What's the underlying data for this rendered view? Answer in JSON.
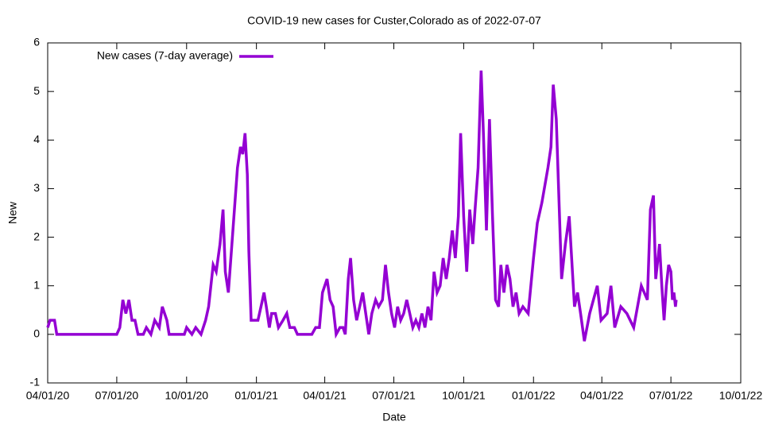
{
  "chart_data": {
    "type": "line",
    "title": "COVID-19 new cases for Custer,Colorado as of 2022-07-07",
    "x_label": "Date",
    "y_label": "New",
    "x": [
      "2020-04-01",
      "2020-04-04",
      "2020-04-10",
      "2020-04-13",
      "2020-07-01",
      "2020-07-05",
      "2020-07-09",
      "2020-07-13",
      "2020-07-17",
      "2020-07-21",
      "2020-07-25",
      "2020-07-29",
      "2020-08-05",
      "2020-08-09",
      "2020-08-15",
      "2020-08-20",
      "2020-08-26",
      "2020-08-30",
      "2020-09-05",
      "2020-09-08",
      "2020-09-28",
      "2020-10-01",
      "2020-10-08",
      "2020-10-13",
      "2020-10-20",
      "2020-10-26",
      "2020-10-30",
      "2020-11-05",
      "2020-11-09",
      "2020-11-14",
      "2020-11-18",
      "2020-11-21",
      "2020-11-25",
      "2020-11-29",
      "2020-12-03",
      "2020-12-07",
      "2020-12-11",
      "2020-12-14",
      "2020-12-17",
      "2020-12-20",
      "2020-12-22",
      "2020-12-25",
      "2021-01-03",
      "2021-01-07",
      "2021-01-11",
      "2021-01-14",
      "2021-01-18",
      "2021-01-21",
      "2021-01-26",
      "2021-01-30",
      "2021-02-05",
      "2021-02-10",
      "2021-02-14",
      "2021-02-20",
      "2021-02-24",
      "2021-03-15",
      "2021-03-20",
      "2021-03-25",
      "2021-03-29",
      "2021-04-04",
      "2021-04-08",
      "2021-04-12",
      "2021-04-16",
      "2021-04-21",
      "2021-04-25",
      "2021-04-28",
      "2021-05-02",
      "2021-05-05",
      "2021-05-09",
      "2021-05-13",
      "2021-05-17",
      "2021-05-21",
      "2021-05-25",
      "2021-05-29",
      "2021-06-02",
      "2021-06-07",
      "2021-06-11",
      "2021-06-16",
      "2021-06-20",
      "2021-06-24",
      "2021-06-28",
      "2021-07-02",
      "2021-07-06",
      "2021-07-10",
      "2021-07-14",
      "2021-07-18",
      "2021-07-22",
      "2021-07-26",
      "2021-07-30",
      "2021-08-03",
      "2021-08-07",
      "2021-08-11",
      "2021-08-15",
      "2021-08-19",
      "2021-08-23",
      "2021-08-27",
      "2021-08-31",
      "2021-09-04",
      "2021-09-08",
      "2021-09-12",
      "2021-09-16",
      "2021-09-20",
      "2021-09-24",
      "2021-09-27",
      "2021-10-01",
      "2021-10-05",
      "2021-10-09",
      "2021-10-13",
      "2021-10-16",
      "2021-10-20",
      "2021-10-24",
      "2021-10-27",
      "2021-10-31",
      "2021-11-04",
      "2021-11-08",
      "2021-11-12",
      "2021-11-16",
      "2021-11-19",
      "2021-11-23",
      "2021-11-27",
      "2021-12-01",
      "2021-12-05",
      "2021-12-09",
      "2021-12-13",
      "2021-12-18",
      "2021-12-25",
      "2022-01-01",
      "2022-01-06",
      "2022-01-12",
      "2022-01-20",
      "2022-01-24",
      "2022-01-27",
      "2022-01-31",
      "2022-02-07",
      "2022-02-12",
      "2022-02-17",
      "2022-02-24",
      "2022-02-28",
      "2022-03-04",
      "2022-03-09",
      "2022-03-16",
      "2022-03-26",
      "2022-03-31",
      "2022-04-08",
      "2022-04-13",
      "2022-04-18",
      "2022-04-26",
      "2022-05-04",
      "2022-05-13",
      "2022-05-18",
      "2022-05-23",
      "2022-05-31",
      "2022-06-04",
      "2022-06-08",
      "2022-06-11",
      "2022-06-16",
      "2022-06-19",
      "2022-06-22",
      "2022-06-25",
      "2022-06-28",
      "2022-07-01",
      "2022-07-03",
      "2022-07-05",
      "2022-07-07",
      "2022-07-08"
    ],
    "series": [
      {
        "name": "New cases (7-day average)",
        "color": "#9400d3",
        "values": [
          0.14,
          0.29,
          0.29,
          0,
          0,
          0.14,
          0.71,
          0.43,
          0.71,
          0.29,
          0.29,
          0,
          0,
          0.14,
          0,
          0.29,
          0.14,
          0.57,
          0.29,
          0,
          0,
          0.14,
          0,
          0.14,
          0,
          0.29,
          0.57,
          1.43,
          1.29,
          1.86,
          2.57,
          1.29,
          0.86,
          1.71,
          2.57,
          3.43,
          3.86,
          3.71,
          4.14,
          3.29,
          1.71,
          0.29,
          0.29,
          0.57,
          0.86,
          0.57,
          0.14,
          0.43,
          0.43,
          0.14,
          0.29,
          0.43,
          0.14,
          0.14,
          0,
          0,
          0.14,
          0.14,
          0.86,
          1.14,
          0.71,
          0.57,
          0,
          0.14,
          0.14,
          0,
          1.14,
          1.57,
          0.71,
          0.29,
          0.57,
          0.86,
          0.43,
          0,
          0.43,
          0.71,
          0.57,
          0.71,
          1.43,
          0.86,
          0.43,
          0.14,
          0.57,
          0.29,
          0.43,
          0.71,
          0.43,
          0.14,
          0.29,
          0.14,
          0.43,
          0.14,
          0.57,
          0.29,
          1.29,
          0.86,
          1,
          1.57,
          1.14,
          1.57,
          2.14,
          1.57,
          2.43,
          4.14,
          2.43,
          1.29,
          2.57,
          1.86,
          2.57,
          3.43,
          5.43,
          4.14,
          2.14,
          4.43,
          2.43,
          0.71,
          0.57,
          1.43,
          0.86,
          1.43,
          1.14,
          0.57,
          0.86,
          0.43,
          0.57,
          0.43,
          1.57,
          2.29,
          2.71,
          3.43,
          3.86,
          5.14,
          4.43,
          1.14,
          1.86,
          2.43,
          0.57,
          0.86,
          0.43,
          -0.14,
          0.43,
          1,
          0.29,
          0.43,
          1,
          0.14,
          0.57,
          0.43,
          0.14,
          0.57,
          1,
          0.71,
          2.57,
          2.86,
          1.14,
          1.86,
          1,
          0.29,
          1,
          1.43,
          1.29,
          0.71,
          0.86,
          0.57,
          0.71
        ]
      }
    ],
    "xlim": [
      "2020-04-01",
      "2022-10-01"
    ],
    "xticks": [
      {
        "value": "2020-04-01",
        "label": "04/01/20"
      },
      {
        "value": "2020-07-01",
        "label": "07/01/20"
      },
      {
        "value": "2020-10-01",
        "label": "10/01/20"
      },
      {
        "value": "2021-01-01",
        "label": "01/01/21"
      },
      {
        "value": "2021-04-01",
        "label": "04/01/21"
      },
      {
        "value": "2021-07-01",
        "label": "07/01/21"
      },
      {
        "value": "2021-10-01",
        "label": "10/01/21"
      },
      {
        "value": "2022-01-01",
        "label": "01/01/22"
      },
      {
        "value": "2022-04-01",
        "label": "04/01/22"
      },
      {
        "value": "2022-07-01",
        "label": "07/01/22"
      },
      {
        "value": "2022-10-01",
        "label": "10/01/22"
      }
    ],
    "ylim": [
      -1,
      6
    ],
    "yticks": [
      -1,
      0,
      1,
      2,
      3,
      4,
      5,
      6
    ],
    "legend": "top-left"
  }
}
